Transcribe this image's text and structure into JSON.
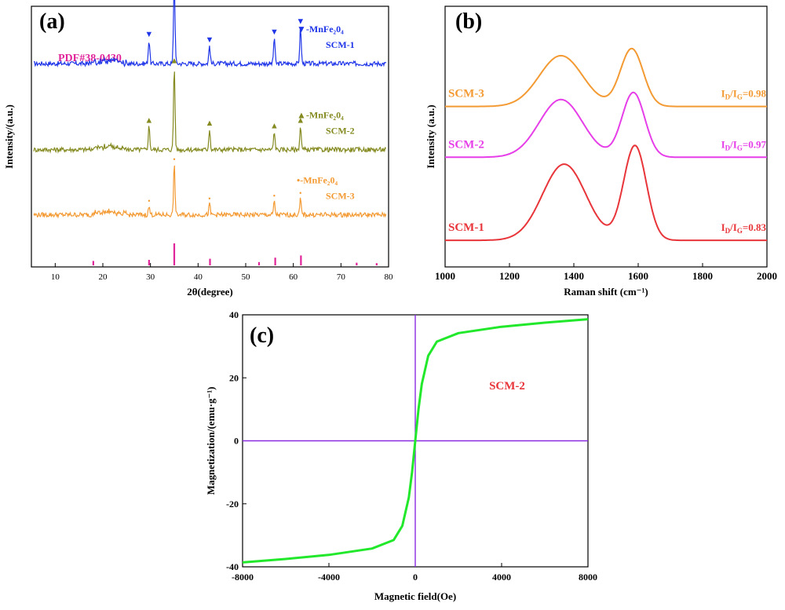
{
  "chart_data": [
    {
      "panel": "(a)",
      "type": "line",
      "xlabel": "2θ(degree)",
      "ylabel": "Intensity/(a.u.)",
      "xlim": [
        5,
        80
      ],
      "xticks": [
        10,
        20,
        30,
        40,
        50,
        60,
        70,
        80
      ],
      "reference": {
        "label": "PDF#38-0430",
        "color": "#e0249a",
        "peaks": [
          {
            "x": 18.0,
            "h": 0.2
          },
          {
            "x": 29.7,
            "h": 0.25
          },
          {
            "x": 35.0,
            "h": 1.0
          },
          {
            "x": 42.5,
            "h": 0.3
          },
          {
            "x": 52.8,
            "h": 0.15
          },
          {
            "x": 56.2,
            "h": 0.35
          },
          {
            "x": 61.6,
            "h": 0.45
          },
          {
            "x": 73.3,
            "h": 0.12
          },
          {
            "x": 77.5,
            "h": 0.1
          }
        ]
      },
      "peak_positions": [
        29.7,
        35.0,
        42.4,
        56.0,
        61.5
      ],
      "series": [
        {
          "name": "SCM-1",
          "color": "#1f35e8",
          "marker": "▼",
          "phase": "-MnFe₂0₄",
          "offset": 0.78,
          "peak_heights": [
            0.09,
            0.32,
            0.07,
            0.1,
            0.14
          ]
        },
        {
          "name": "SCM-2",
          "color": "#858a21",
          "marker": "▲",
          "phase": "-MnFe₂0₄",
          "offset": 0.45,
          "peak_heights": [
            0.09,
            0.32,
            0.08,
            0.07,
            0.09
          ]
        },
        {
          "name": "SCM-3",
          "color": "#f39a33",
          "marker": "•",
          "phase": "-MnFe₂0₄",
          "offset": 0.2,
          "peak_heights": [
            0.03,
            0.19,
            0.04,
            0.05,
            0.06
          ]
        }
      ]
    },
    {
      "panel": "(b)",
      "type": "line",
      "xlabel": "Raman shift (cm⁻¹)",
      "ylabel": "Intensity (a.u.)",
      "xlim": [
        1000,
        2000
      ],
      "xticks": [
        1000,
        1200,
        1400,
        1600,
        1800,
        2000
      ],
      "series": [
        {
          "name": "SCM-3",
          "color": "#f39a33",
          "ratio": "=0.98",
          "baseline": 0.6,
          "d_peak": {
            "x": 1360,
            "h": 0.22
          },
          "g_peak": {
            "x": 1580,
            "h": 0.25
          }
        },
        {
          "name": "SCM-2",
          "color": "#e63ee8",
          "ratio": "=0.97",
          "baseline": 0.38,
          "d_peak": {
            "x": 1360,
            "h": 0.25
          },
          "g_peak": {
            "x": 1585,
            "h": 0.28
          }
        },
        {
          "name": "SCM-1",
          "color": "#e8353a",
          "ratio": "=0.83",
          "baseline": 0.02,
          "d_peak": {
            "x": 1370,
            "h": 0.33
          },
          "g_peak": {
            "x": 1590,
            "h": 0.41
          }
        }
      ],
      "ratio_prefix": "I",
      "ratio_sub_d": "D",
      "ratio_sub_g": "G",
      "ratio_slash": "/I"
    },
    {
      "panel": "(c)",
      "type": "line",
      "xlabel": "Magnetic field(Oe)",
      "ylabel": "Magnetization/(emu·g⁻¹)",
      "xlim": [
        -8000,
        8000
      ],
      "ylim": [
        -40,
        40
      ],
      "xticks": [
        -8000,
        -4000,
        0,
        4000,
        8000
      ],
      "yticks": [
        -40,
        -20,
        0,
        20,
        40
      ],
      "axis_line_color": "#8a2be2",
      "series": [
        {
          "name": "SCM-2",
          "color": "#22e82b",
          "points": [
            [
              -8000,
              -38.6
            ],
            [
              -6000,
              -37.5
            ],
            [
              -4000,
              -36.2
            ],
            [
              -2000,
              -34.2
            ],
            [
              -1000,
              -31.5
            ],
            [
              -600,
              -27
            ],
            [
              -300,
              -18
            ],
            [
              -150,
              -10
            ],
            [
              0,
              0
            ],
            [
              150,
              10
            ],
            [
              300,
              18
            ],
            [
              600,
              27
            ],
            [
              1000,
              31.5
            ],
            [
              2000,
              34.2
            ],
            [
              4000,
              36.2
            ],
            [
              6000,
              37.5
            ],
            [
              8000,
              38.6
            ]
          ]
        }
      ],
      "annotation": "SCM-2",
      "annotation_color": "#e8353a"
    }
  ]
}
